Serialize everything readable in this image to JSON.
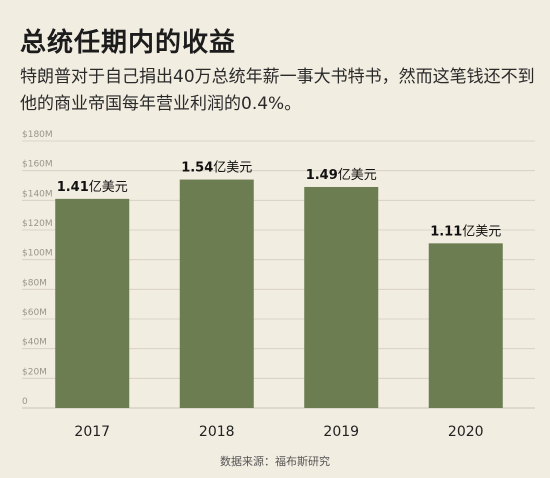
{
  "header": {
    "title": "总统任期内的收益",
    "subtitle": "特朗普对于自己捐出40万总统年薪一事大书特书，然而这笔钱还不到他的商业帝国每年营业利润的0.4%。"
  },
  "source": "数据来源：福布斯研究",
  "colors": {
    "bar": "#6b7d51",
    "background": "#f2ede1",
    "grid": "#d2cdc0"
  },
  "chart_data": {
    "type": "bar",
    "title": "总统任期内的收益",
    "categories": [
      "2017",
      "2018",
      "2019",
      "2020"
    ],
    "values": [
      141,
      154,
      149,
      111
    ],
    "data_labels": [
      "1.41亿美元",
      "1.54亿美元",
      "1.49亿美元",
      "1.11亿美元"
    ],
    "ylim": [
      0,
      180
    ],
    "yticks": [
      0,
      20,
      40,
      60,
      80,
      100,
      120,
      140,
      160,
      180
    ],
    "ytick_labels": [
      "0",
      "$20M",
      "$40M",
      "$60M",
      "$80M",
      "$100M",
      "$120M",
      "$140M",
      "$160M",
      "$180M"
    ],
    "grid": true
  }
}
